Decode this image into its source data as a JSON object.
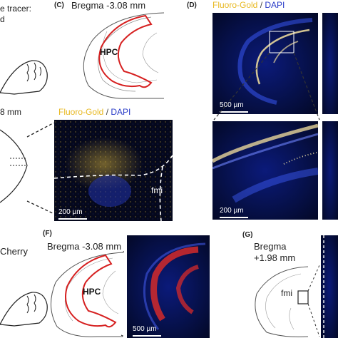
{
  "panel_a": {
    "text_line1": "e tracer:",
    "text_line2": "d"
  },
  "panel_b": {
    "bregma_fragment": "8 mm"
  },
  "panel_c": {
    "letter": "(C)",
    "bregma": "Bregma -3.08 mm",
    "region": "HPC"
  },
  "panel_d": {
    "letter": "(D)",
    "stain_a": "Fluoro-Gold",
    "separator": " / ",
    "stain_b": "DAPI",
    "scale_top": "500 µm",
    "scale_bottom": "200 µm"
  },
  "panel_e": {
    "stain_a": "Fluoro-Gold",
    "separator": " / ",
    "stain_b": "DAPI",
    "tract": "fmi",
    "scale": "200 µm"
  },
  "panel_e_left": {
    "text": "Cherry"
  },
  "panel_f": {
    "letter": "(F)",
    "bregma": "Bregma -3.08 mm",
    "region": "HPC",
    "scale": "500 µm"
  },
  "panel_g": {
    "letter": "(G)",
    "bregma_line1": "Bregma",
    "bregma_line2": "+1.98 mm",
    "tract": "fmi"
  },
  "colors": {
    "fluoro_gold": "#e8b923",
    "dapi": "#2a3cc8",
    "hpc_outline": "#d62020",
    "mcherry": "#d42a2a"
  }
}
